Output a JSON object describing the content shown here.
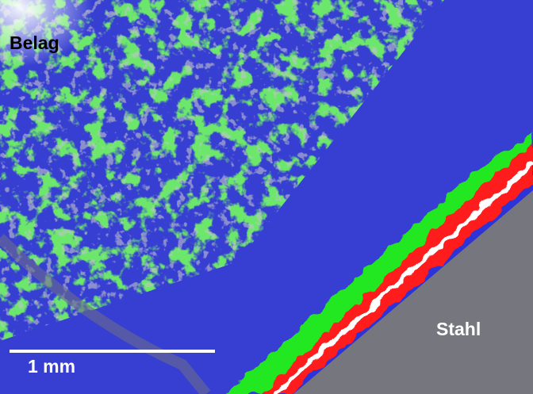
{
  "labels": {
    "top_region": "Belag",
    "bottom_region": "Stahl"
  },
  "scale_bar": {
    "label": "1 mm"
  }
}
